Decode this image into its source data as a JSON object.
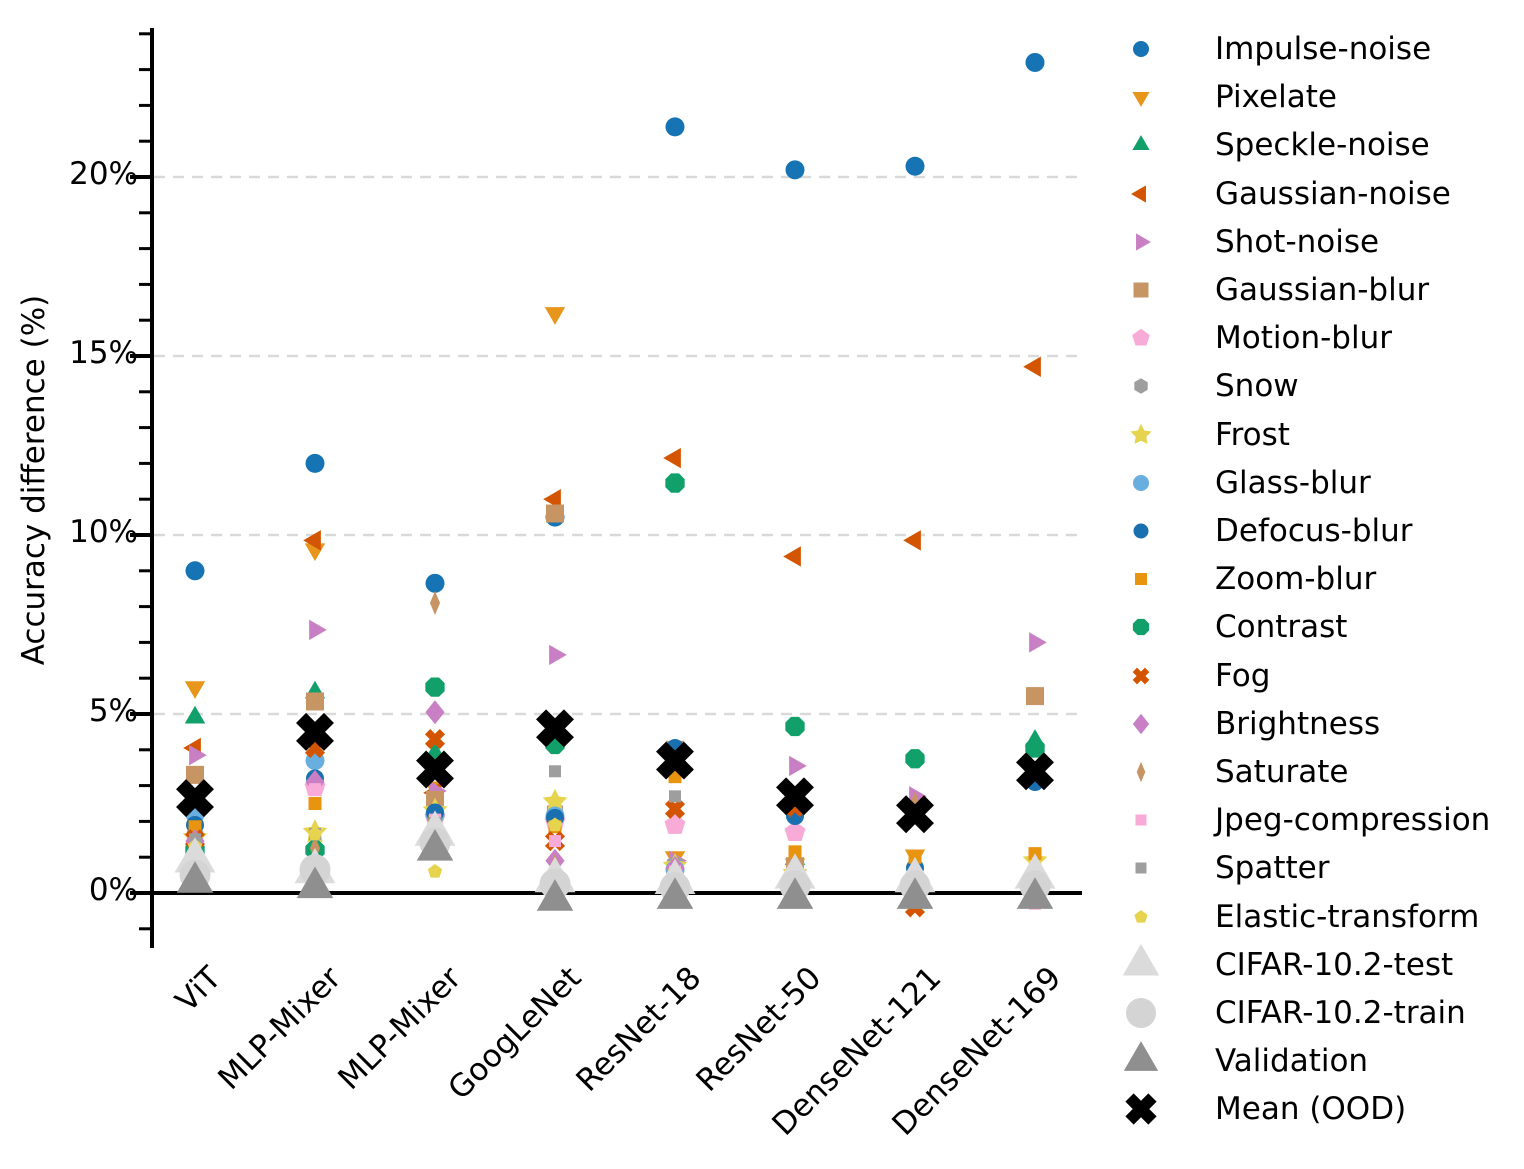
{
  "y_axis": {
    "label": "Accuracy difference (%)",
    "tick_labels": [
      "0%",
      "5%",
      "10%",
      "15%",
      "20%"
    ],
    "tick_values": [
      0,
      5,
      10,
      15,
      20
    ],
    "minor_tick_step": 1,
    "minor_tick_range": [
      -1,
      24
    ]
  },
  "x_axis": {
    "categories": [
      "ViT",
      "MLP-Mixer",
      "MLP-Mixer",
      "GoogLeNet",
      "ResNet-18",
      "ResNet-50",
      "DenseNet-121",
      "DenseNet-169"
    ]
  },
  "colors": {
    "grid": "#d9d9d9",
    "axis": "#000000",
    "zero_line": "#000000"
  },
  "chart_data": {
    "type": "scatter",
    "title": "",
    "xlabel": "",
    "ylabel": "Accuracy difference (%)",
    "ylim": [
      -2.2,
      24.3
    ],
    "grid": "dashed horizontal at 5,10,15,20",
    "legend_position": "right, outside",
    "categories": [
      "ViT",
      "MLP-Mixer",
      "MLP-Mixer",
      "GoogLeNet",
      "ResNet-18",
      "ResNet-50",
      "DenseNet-121",
      "DenseNet-169"
    ],
    "series": [
      {
        "name": "Impulse-noise",
        "marker": "circle",
        "color": "#1774b4",
        "size": 19,
        "legend_size": 16,
        "values": [
          9.0,
          12.0,
          8.65,
          10.5,
          21.4,
          20.2,
          20.3,
          23.2
        ]
      },
      {
        "name": "Pixelate",
        "marker": "triangle-down",
        "color": "#e8951c",
        "size": 19,
        "legend_size": 16,
        "values": [
          5.75,
          9.6,
          2.95,
          16.2,
          1.0,
          0.8,
          1.05,
          0.3
        ]
      },
      {
        "name": "Speckle-noise",
        "marker": "triangle-up",
        "color": "#12a06a",
        "size": 19,
        "legend_size": 16,
        "values": [
          4.9,
          5.6,
          3.9,
          4.4,
          0.45,
          0.95,
          0.15,
          4.25
        ]
      },
      {
        "name": "Gaussian-noise",
        "marker": "triangle-left",
        "color": "#d45500",
        "size": 19,
        "legend_size": 16,
        "values": [
          4.05,
          9.85,
          2.8,
          11.0,
          12.15,
          9.4,
          9.85,
          14.7
        ]
      },
      {
        "name": "Shot-noise",
        "marker": "triangle-right",
        "color": "#c97fc3",
        "size": 19,
        "legend_size": 16,
        "values": [
          3.85,
          7.35,
          2.85,
          6.65,
          0.9,
          3.55,
          2.7,
          7.0
        ]
      },
      {
        "name": "Gaussian-blur",
        "marker": "square",
        "color": "#c79464",
        "size": 18,
        "legend_size": 15,
        "values": [
          3.3,
          5.35,
          2.6,
          10.6,
          4.0,
          0.75,
          0.2,
          5.5
        ]
      },
      {
        "name": "Motion-blur",
        "marker": "pentagon",
        "color": "#f9abd7",
        "size": 19,
        "legend_size": 16,
        "values": [
          2.5,
          2.95,
          2.1,
          2.0,
          1.9,
          1.7,
          0.1,
          0.15
        ]
      },
      {
        "name": "Snow",
        "marker": "hexagon",
        "color": "#9e9e9e",
        "size": 17,
        "legend_size": 14,
        "values": [
          1.6,
          3.7,
          2.15,
          2.3,
          0.8,
          0.6,
          0.1,
          0.1
        ]
      },
      {
        "name": "Frost",
        "marker": "star",
        "color": "#e6d44f",
        "size": 21,
        "legend_size": 18,
        "values": [
          1.55,
          1.7,
          2.3,
          2.55,
          0.75,
          0.55,
          0.1,
          0.9
        ]
      },
      {
        "name": "Glass-blur",
        "marker": "circle",
        "color": "#68aede",
        "size": 19,
        "legend_size": 16,
        "values": [
          2.2,
          3.7,
          2.2,
          2.15,
          0.65,
          0.5,
          0.15,
          0.2
        ]
      },
      {
        "name": "Defocus-blur",
        "marker": "circle",
        "color": "#1a6faf",
        "size": 18,
        "legend_size": 15,
        "values": [
          1.9,
          3.2,
          2.25,
          2.1,
          4.05,
          2.15,
          0.7,
          3.1
        ]
      },
      {
        "name": "Zoom-blur",
        "marker": "square",
        "color": "#e8940f",
        "size": 13,
        "legend_size": 12,
        "values": [
          1.85,
          2.5,
          2.0,
          1.85,
          3.25,
          1.15,
          1.0,
          1.1
        ]
      },
      {
        "name": "Contrast",
        "marker": "octagon",
        "color": "#12a06a",
        "size": 19,
        "legend_size": 16,
        "values": [
          1.2,
          1.2,
          5.75,
          4.15,
          11.45,
          4.65,
          3.75,
          4.05
        ]
      },
      {
        "name": "Fog",
        "marker": "x-cross",
        "color": "#d45500",
        "size": 18,
        "legend_size": 15,
        "values": [
          1.5,
          4.05,
          4.3,
          1.45,
          2.35,
          2.4,
          -0.4,
          0.1
        ]
      },
      {
        "name": "Brightness",
        "marker": "diamond",
        "color": "#c97fc3",
        "size": 20,
        "legend_size": 17,
        "values": [
          1.45,
          3.1,
          5.05,
          0.9,
          0.7,
          0.6,
          0.1,
          0.1
        ]
      },
      {
        "name": "Saturate",
        "marker": "thin-diamond",
        "color": "#c79464",
        "size": 20,
        "legend_size": 17,
        "values": [
          1.4,
          1.25,
          8.1,
          0.75,
          0.65,
          0.5,
          2.5,
          0.05
        ]
      },
      {
        "name": "Jpeg-compression",
        "marker": "square",
        "color": "#f9abd7",
        "size": 12,
        "legend_size": 11,
        "values": [
          1.35,
          2.9,
          2.05,
          1.45,
          0.6,
          0.45,
          0.05,
          -0.3
        ]
      },
      {
        "name": "Spatter",
        "marker": "square",
        "color": "#9e9e9e",
        "size": 12,
        "legend_size": 11,
        "values": [
          1.5,
          1.65,
          1.95,
          3.4,
          2.7,
          0.45,
          0.05,
          0.1
        ]
      },
      {
        "name": "Elastic-transform",
        "marker": "pentagon",
        "color": "#e6d44f",
        "size": 13,
        "legend_size": 12,
        "values": [
          1.3,
          1.65,
          0.6,
          1.9,
          0.6,
          0.4,
          0.0,
          0.3
        ]
      },
      {
        "name": "CIFAR-10.2-test",
        "marker": "triangle-up",
        "color": "#dbdbdb",
        "size": 38,
        "legend_size": 34,
        "values": [
          0.9,
          0.6,
          1.65,
          0.35,
          0.3,
          0.45,
          0.35,
          0.45
        ]
      },
      {
        "name": "CIFAR-10.2-train",
        "marker": "circle",
        "color": "#d4d4d4",
        "size": 31,
        "legend_size": 30,
        "values": [
          0.5,
          0.65,
          1.4,
          0.25,
          0.15,
          0.2,
          0.2,
          0.2
        ]
      },
      {
        "name": "Validation",
        "marker": "triangle-up",
        "color": "#8f8f8f",
        "size": 34,
        "legend_size": 32,
        "values": [
          0.3,
          0.15,
          1.2,
          -0.2,
          -0.15,
          -0.15,
          -0.15,
          -0.15
        ]
      },
      {
        "name": "Mean (OOD)",
        "marker": "x-cross",
        "color": "#000000",
        "size": 34,
        "legend_size": 28,
        "values": [
          2.65,
          4.5,
          3.45,
          4.6,
          3.7,
          2.7,
          2.2,
          3.4
        ]
      }
    ]
  }
}
